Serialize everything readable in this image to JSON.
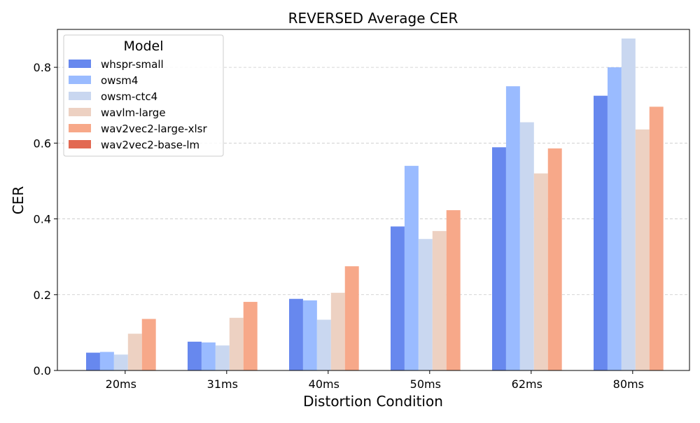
{
  "chart_data": {
    "type": "bar",
    "title": "REVERSED Average CER",
    "xlabel": "Distortion Condition",
    "ylabel": "CER",
    "ylim": [
      0,
      0.9
    ],
    "yticks": [
      0.0,
      0.2,
      0.4,
      0.6,
      0.8
    ],
    "ytick_labels": [
      "0.0",
      "0.2",
      "0.4",
      "0.6",
      "0.8"
    ],
    "grid": "y-dashed",
    "categories": [
      "20ms",
      "31ms",
      "40ms",
      "50ms",
      "62ms",
      "80ms"
    ],
    "legend": {
      "title": "Model",
      "placement": "upper-left"
    },
    "series": [
      {
        "name": "whspr-small",
        "color": "#6788ee",
        "values": [
          0.047,
          0.076,
          0.189,
          0.38,
          0.589,
          0.725
        ]
      },
      {
        "name": "owsm4",
        "color": "#9abbff",
        "values": [
          0.049,
          0.074,
          0.185,
          0.54,
          0.75,
          0.8
        ]
      },
      {
        "name": "owsm-ctc4",
        "color": "#c9d7f0",
        "values": [
          0.042,
          0.066,
          0.134,
          0.347,
          0.655,
          0.876
        ]
      },
      {
        "name": "wavlm-large",
        "color": "#edd1c2",
        "values": [
          0.097,
          0.139,
          0.205,
          0.368,
          0.52,
          0.636
        ]
      },
      {
        "name": "wav2vec2-large-xlsr",
        "color": "#f7a889",
        "values": [
          0.136,
          0.181,
          0.275,
          0.423,
          0.586,
          0.696
        ]
      },
      {
        "name": "wav2vec2-base-lm",
        "color": "#e26952",
        "values": [
          0,
          0,
          0,
          0,
          0,
          0
        ]
      }
    ]
  }
}
